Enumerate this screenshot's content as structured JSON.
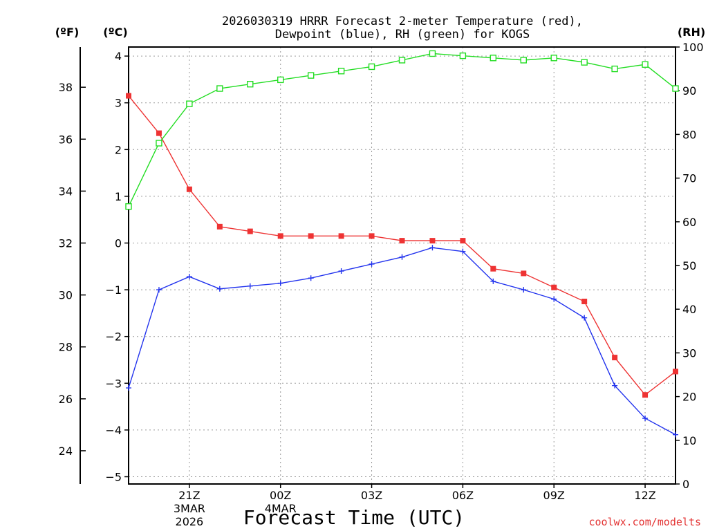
{
  "chart_data": {
    "type": "line",
    "title_line1": "2026030319 HRRR Forecast 2-meter Temperature (red),",
    "title_line2": "Dewpoint (blue), RH (green) for KOGS",
    "xlabel": "Forecast Time (UTC)",
    "credit": "coolwx.com/modelts",
    "units_left_f": "(ºF)",
    "units_left_c": "(ºC)",
    "units_right": "(RH)",
    "x_hours": [
      0,
      1,
      2,
      3,
      4,
      5,
      6,
      7,
      8,
      9,
      10,
      11,
      12,
      13,
      14,
      15,
      16,
      17,
      18
    ],
    "x_start_label": "2026030319",
    "xlim": [
      0,
      18
    ],
    "ylim_c": [
      -5,
      4
    ],
    "ylim_rh": [
      0,
      100
    ],
    "series": [
      {
        "name": "Temperature (°C)",
        "axis": "c",
        "color": "#ee3333",
        "marker": "filled-square",
        "values": [
          3.15,
          2.35,
          1.15,
          0.35,
          0.25,
          0.15,
          0.15,
          0.15,
          0.15,
          0.05,
          0.05,
          0.05,
          -0.55,
          -0.65,
          -0.95,
          -1.25,
          -2.45,
          -3.25,
          -2.75
        ]
      },
      {
        "name": "Dewpoint (°C)",
        "axis": "c",
        "color": "#2233ee",
        "marker": "plus",
        "values": [
          -3.1,
          -1.0,
          -0.72,
          -0.98,
          -0.92,
          -0.86,
          -0.75,
          -0.6,
          -0.45,
          -0.3,
          -0.1,
          -0.18,
          -0.82,
          -1.0,
          -1.2,
          -1.6,
          -3.05,
          -3.75,
          -4.1
        ]
      },
      {
        "name": "RH (%)",
        "axis": "rh",
        "color": "#22dd22",
        "marker": "open-square",
        "values": [
          63.5,
          78,
          87,
          90.5,
          91.5,
          92.5,
          93.5,
          94.5,
          95.5,
          97,
          98.5,
          98,
          97.5,
          97,
          97.5,
          96.5,
          95,
          96,
          90.5
        ]
      }
    ],
    "y_ticks_c": [
      {
        "value": 4,
        "label": "4"
      },
      {
        "value": 3,
        "label": "3"
      },
      {
        "value": 2,
        "label": "2"
      },
      {
        "value": 1,
        "label": "1"
      },
      {
        "value": 0,
        "label": "0"
      },
      {
        "value": -1,
        "label": "−1"
      },
      {
        "value": -2,
        "label": "−2"
      },
      {
        "value": -3,
        "label": "−3"
      },
      {
        "value": -4,
        "label": "−4"
      },
      {
        "value": -5,
        "label": "−5"
      }
    ],
    "y_ticks_f": [
      {
        "value": 38,
        "label": "38"
      },
      {
        "value": 36,
        "label": "36"
      },
      {
        "value": 34,
        "label": "34"
      },
      {
        "value": 32,
        "label": "32"
      },
      {
        "value": 30,
        "label": "30"
      },
      {
        "value": 28,
        "label": "28"
      },
      {
        "value": 26,
        "label": "26"
      },
      {
        "value": 24,
        "label": "24"
      }
    ],
    "y_ticks_rh": [
      {
        "value": 100,
        "label": "100"
      },
      {
        "value": 90,
        "label": "90"
      },
      {
        "value": 80,
        "label": "80"
      },
      {
        "value": 70,
        "label": "70"
      },
      {
        "value": 60,
        "label": "60"
      },
      {
        "value": 50,
        "label": "50"
      },
      {
        "value": 40,
        "label": "40"
      },
      {
        "value": 30,
        "label": "30"
      },
      {
        "value": 20,
        "label": "20"
      },
      {
        "value": 10,
        "label": "10"
      },
      {
        "value": 0,
        "label": "0"
      }
    ],
    "x_ticks": [
      {
        "hour": 2,
        "label": "21Z",
        "sub1": "3MAR",
        "sub2": "2026"
      },
      {
        "hour": 5,
        "label": "00Z",
        "sub1": "4MAR",
        "sub2": ""
      },
      {
        "hour": 8,
        "label": "03Z",
        "sub1": "",
        "sub2": ""
      },
      {
        "hour": 11,
        "label": "06Z",
        "sub1": "",
        "sub2": ""
      },
      {
        "hour": 14,
        "label": "09Z",
        "sub1": "",
        "sub2": ""
      },
      {
        "hour": 17,
        "label": "12Z",
        "sub1": "",
        "sub2": ""
      }
    ]
  }
}
